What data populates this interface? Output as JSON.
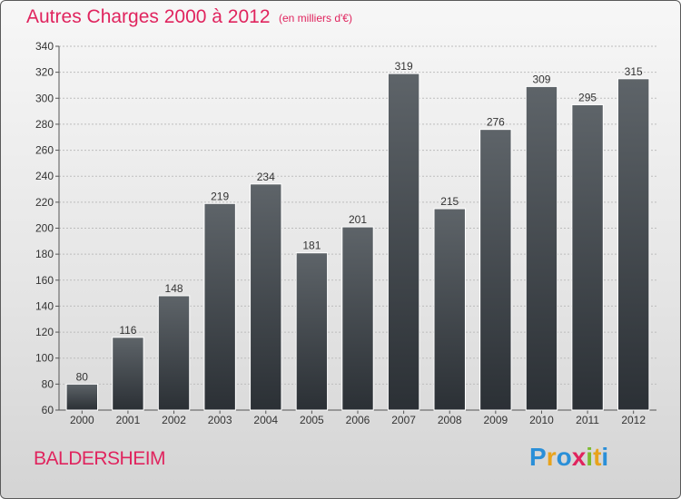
{
  "title": "Autres Charges 2000 à 2012",
  "subtitle": "(en milliers d'€)",
  "location": "BALDERSHEIM",
  "logo": {
    "letters": [
      "P",
      "r",
      "o",
      "x",
      "i",
      "t",
      "i"
    ],
    "colors": [
      "#2a8fd8",
      "#e8a31c",
      "#2a8fd8",
      "#e0245e",
      "#7cbb2e",
      "#e8a31c",
      "#2a8fd8"
    ]
  },
  "colors": {
    "accent": "#e0245e",
    "bar_top": "#5e6469",
    "bar_bottom": "#2b3035"
  },
  "chart_data": {
    "type": "bar",
    "title": "Autres Charges 2000 à 2012",
    "subtitle": "(en milliers d'€)",
    "xlabel": "",
    "ylabel": "",
    "categories": [
      "2000",
      "2001",
      "2002",
      "2003",
      "2004",
      "2005",
      "2006",
      "2007",
      "2008",
      "2009",
      "2010",
      "2011",
      "2012"
    ],
    "values": [
      80,
      116,
      148,
      219,
      234,
      181,
      201,
      319,
      215,
      276,
      309,
      295,
      315
    ],
    "ylim": [
      60,
      340
    ],
    "yticks": [
      60,
      80,
      100,
      120,
      140,
      160,
      180,
      200,
      220,
      240,
      260,
      280,
      300,
      320,
      340
    ],
    "grid": true,
    "data_labels": true
  }
}
